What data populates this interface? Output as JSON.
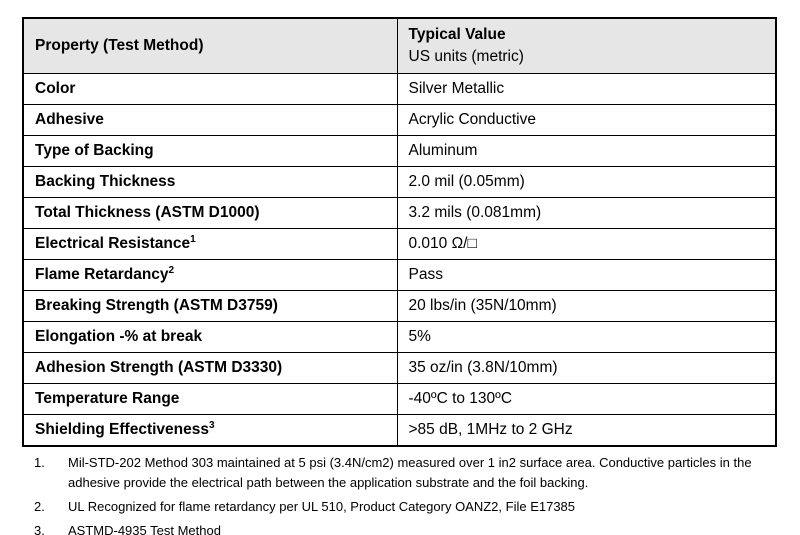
{
  "colors": {
    "header_bg": "#e6e6e6",
    "border": "#000000",
    "text": "#000000",
    "page_bg": "#ffffff"
  },
  "table": {
    "header": {
      "col1": "Property (Test Method)",
      "col2_line1": "Typical Value",
      "col2_line2": "US units (metric)"
    },
    "rows": [
      {
        "property": "Color",
        "sup": "",
        "value": "Silver Metallic"
      },
      {
        "property": "Adhesive",
        "sup": "",
        "value": "Acrylic Conductive"
      },
      {
        "property": "Type of Backing",
        "sup": "",
        "value": "Aluminum"
      },
      {
        "property": "Backing Thickness",
        "sup": "",
        "value": "2.0 mil (0.05mm)"
      },
      {
        "property": "Total Thickness (ASTM D1000)",
        "sup": "",
        "value": "3.2 mils (0.081mm)"
      },
      {
        "property": "Electrical Resistance",
        "sup": "1",
        "value": "0.010 Ω/□"
      },
      {
        "property": "Flame Retardancy",
        "sup": "2",
        "value": "Pass"
      },
      {
        "property": "Breaking Strength (ASTM D3759)",
        "sup": "",
        "value": "20 lbs/in (35N/10mm)"
      },
      {
        "property": "Elongation -% at break",
        "sup": "",
        "value": "5%"
      },
      {
        "property": "Adhesion Strength (ASTM D3330)",
        "sup": "",
        "value": "35 oz/in (3.8N/10mm)"
      },
      {
        "property": "Temperature Range",
        "sup": "",
        "value": "-40ºC to 130ºC"
      },
      {
        "property": "Shielding Effectiveness",
        "sup": "3",
        "value": ">85 dB, 1MHz to 2 GHz"
      }
    ]
  },
  "footnotes": [
    {
      "num": "1.",
      "text": "Mil-STD-202 Method 303 maintained at 5 psi (3.4N/cm2) measured over 1 in2 surface area. Conductive particles in the adhesive provide the electrical path between the application substrate and the foil backing."
    },
    {
      "num": "2.",
      "text": "UL Recognized for flame retardancy per UL 510, Product Category OANZ2, File E17385"
    },
    {
      "num": "3.",
      "text": "ASTMD-4935 Test Method"
    }
  ]
}
